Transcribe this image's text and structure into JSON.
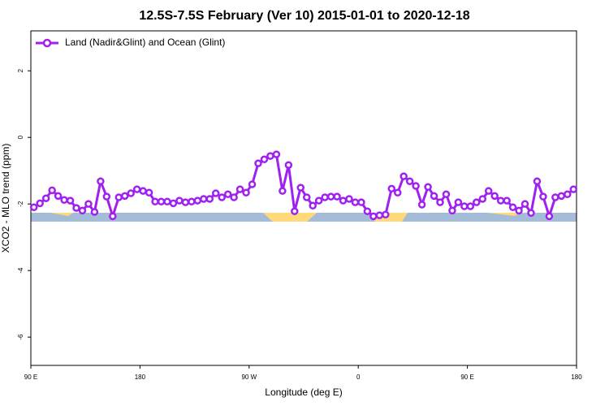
{
  "chart_data": {
    "type": "line",
    "title": "12.5S-7.5S February (Ver 10)   2015-01-01 to 2020-12-18",
    "x_label": "Longitude (deg E)",
    "y_label": "XCO2 - MLO trend (ppm)",
    "x": [
      92.5,
      97.5,
      102.5,
      107.5,
      112.5,
      117.5,
      122.5,
      127.5,
      132.5,
      137.5,
      142.5,
      147.5,
      152.5,
      157.5,
      162.5,
      167.5,
      172.5,
      177.5,
      182.5,
      187.5,
      192.5,
      197.5,
      202.5,
      207.5,
      212.5,
      217.5,
      222.5,
      227.5,
      232.5,
      237.5,
      242.5,
      247.5,
      252.5,
      257.5,
      262.5,
      267.5,
      272.5,
      277.5,
      282.5,
      287.5,
      292.5,
      297.5,
      302.5,
      307.5,
      312.5,
      317.5,
      322.5,
      327.5,
      332.5,
      337.5,
      342.5,
      347.5,
      352.5,
      357.5,
      362.5,
      367.5,
      372.5,
      377.5,
      382.5,
      387.5,
      392.5,
      397.5,
      402.5,
      407.5,
      412.5,
      417.5,
      422.5,
      427.5,
      432.5,
      437.5,
      442.5,
      447.5,
      452.5,
      457.5,
      462.5,
      467.5,
      472.5,
      477.5,
      482.5,
      487.5,
      492.5,
      497.5,
      502.5,
      507.5,
      512.5,
      517.5,
      522.5,
      527.5,
      532.5,
      537.5
    ],
    "series": [
      {
        "name": "Land (Nadir&Glint) and Ocean (Glint)",
        "color": "#a020f0",
        "values": [
          -2.1,
          -1.98,
          -1.83,
          -1.59,
          -1.76,
          -1.88,
          -1.9,
          -2.12,
          -2.2,
          -2.0,
          -2.24,
          -1.32,
          -1.78,
          -2.37,
          -1.8,
          -1.76,
          -1.68,
          -1.56,
          -1.61,
          -1.66,
          -1.93,
          -1.93,
          -1.93,
          -1.98,
          -1.9,
          -1.95,
          -1.93,
          -1.9,
          -1.85,
          -1.85,
          -1.68,
          -1.8,
          -1.71,
          -1.8,
          -1.56,
          -1.66,
          -1.41,
          -0.78,
          -0.66,
          -0.56,
          -0.51,
          -1.61,
          -0.83,
          -2.22,
          -1.51,
          -1.8,
          -2.05,
          -1.9,
          -1.8,
          -1.78,
          -1.78,
          -1.9,
          -1.85,
          -1.95,
          -1.95,
          -2.22,
          -2.37,
          -2.34,
          -2.32,
          -1.54,
          -1.66,
          -1.17,
          -1.32,
          -1.46,
          -2.02,
          -1.49,
          -1.76,
          -1.95,
          -1.71,
          -2.2,
          -1.95,
          -2.07,
          -2.07,
          -1.95,
          -1.85,
          -1.61,
          -1.76,
          -1.9,
          -1.9,
          -2.1,
          -2.2,
          -2.0,
          -2.27,
          -1.32,
          -1.78,
          -2.37,
          -1.8,
          -1.76,
          -1.71,
          -1.56
        ]
      }
    ],
    "xlim": [
      90,
      540
    ],
    "xticks": [
      {
        "value": 90,
        "label": "90 E"
      },
      180,
      {
        "value": 270,
        "label": "90 W"
      },
      {
        "value": 360,
        "label": "0"
      },
      {
        "value": 450,
        "label": "90 E"
      },
      {
        "value": 540,
        "label": "180"
      }
    ],
    "ylim": [
      -6.85,
      3.2
    ],
    "yticks": [
      -6,
      -4,
      -2,
      0,
      2
    ],
    "legend": "top-left"
  }
}
